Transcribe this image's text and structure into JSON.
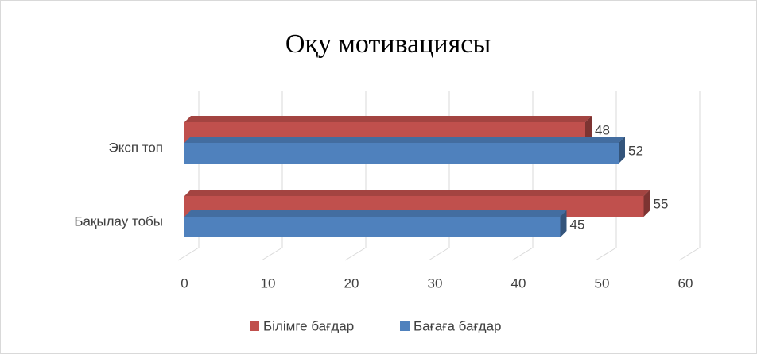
{
  "chart_data": {
    "type": "bar3d_horizontal",
    "title": "Оқу мотивациясы",
    "categories": [
      "Эксп топ",
      "Бақылау тобы"
    ],
    "series": [
      {
        "name": "Білімге бағдар",
        "color": "#c0504d",
        "values": [
          48,
          55
        ]
      },
      {
        "name": "Бағаға бағдар",
        "color": "#4f81bd",
        "values": [
          52,
          45
        ]
      }
    ],
    "xlim": [
      0,
      60
    ],
    "xticks": [
      0,
      10,
      20,
      30,
      40,
      50,
      60
    ],
    "grid": true,
    "legend": "bottom"
  }
}
